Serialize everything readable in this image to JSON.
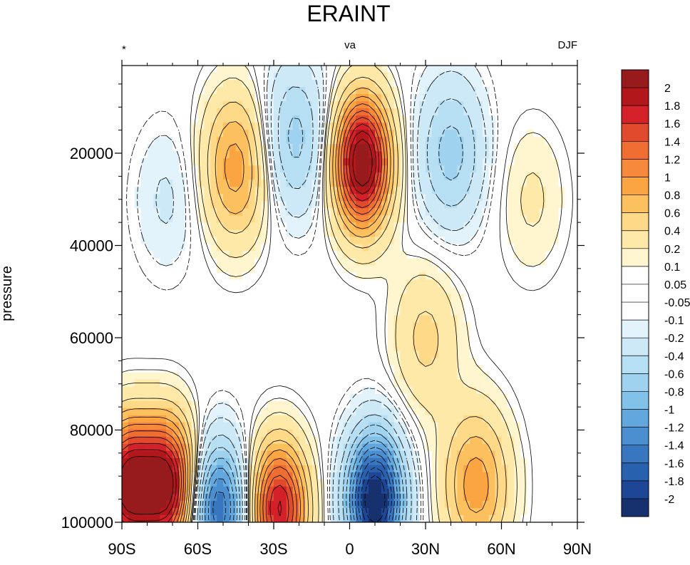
{
  "chart_data": {
    "type": "contour",
    "title": "ERAINT",
    "left_string": "*",
    "center_string": "va",
    "right_string": "DJF",
    "ylabel": "pressure",
    "xlabel": "",
    "x_ticks": [
      "90S",
      "60S",
      "30S",
      "0",
      "30N",
      "60N",
      "90N"
    ],
    "x_tick_values": [
      -90,
      -60,
      -30,
      0,
      30,
      60,
      90
    ],
    "xlim": [
      -90,
      90
    ],
    "y_ticks": [
      "20000",
      "40000",
      "60000",
      "80000",
      "100000"
    ],
    "y_tick_values": [
      20000,
      40000,
      60000,
      80000,
      100000
    ],
    "ylim": [
      1000,
      100000
    ],
    "y_reversed": true,
    "colorbar_levels": [
      "2",
      "1.8",
      "1.6",
      "1.4",
      "1.2",
      "1",
      "0.8",
      "0.6",
      "0.4",
      "0.2",
      "0.1",
      "0.05",
      "-0.05",
      "-0.1",
      "-0.2",
      "-0.4",
      "-0.6",
      "-0.8",
      "-1",
      "-1.2",
      "-1.4",
      "-1.6",
      "-1.8",
      "-2"
    ],
    "colorbar_colors": [
      "#971a1c",
      "#b2181b",
      "#d32029",
      "#e14a2d",
      "#ef6d30",
      "#f6893b",
      "#fba542",
      "#fdc05f",
      "#fed988",
      "#fee9a8",
      "#fff6cf",
      "#ffffff",
      "#ffffff",
      "#ffffff",
      "#e3f3fb",
      "#cde9f7",
      "#b6dff4",
      "#9ed2ef",
      "#82c1e8",
      "#62a7dd",
      "#4b8fd0",
      "#3877c0",
      "#2861ae",
      "#1d4796",
      "#17306e"
    ],
    "features": [
      {
        "label": "max",
        "lat": 5,
        "pressure": 22000,
        "value": 2.0
      },
      {
        "label": "min",
        "lat": 10,
        "pressure": 95000,
        "value": -2.0
      },
      {
        "label": "max",
        "lat": -72,
        "pressure": 92000,
        "value": 1.8
      },
      {
        "label": "max",
        "lat": -88,
        "pressure": 92000,
        "value": 1.8
      },
      {
        "label": "max",
        "lat": -28,
        "pressure": 97000,
        "value": 1.6
      },
      {
        "label": "min",
        "lat": -52,
        "pressure": 97000,
        "value": -1.4
      },
      {
        "label": "max",
        "lat": -45,
        "pressure": 23000,
        "value": 0.8
      },
      {
        "label": "min",
        "lat": -22,
        "pressure": 17000,
        "value": -0.6
      },
      {
        "label": "min",
        "lat": -72,
        "pressure": 30000,
        "value": -0.2
      },
      {
        "label": "min",
        "lat": 40,
        "pressure": 20000,
        "value": -0.6
      },
      {
        "label": "max",
        "lat": 50,
        "pressure": 92000,
        "value": 0.8
      },
      {
        "label": "max",
        "lat": 30,
        "pressure": 60000,
        "value": 0.4
      },
      {
        "label": "max",
        "lat": 72,
        "pressure": 30000,
        "value": 0.2
      }
    ]
  }
}
